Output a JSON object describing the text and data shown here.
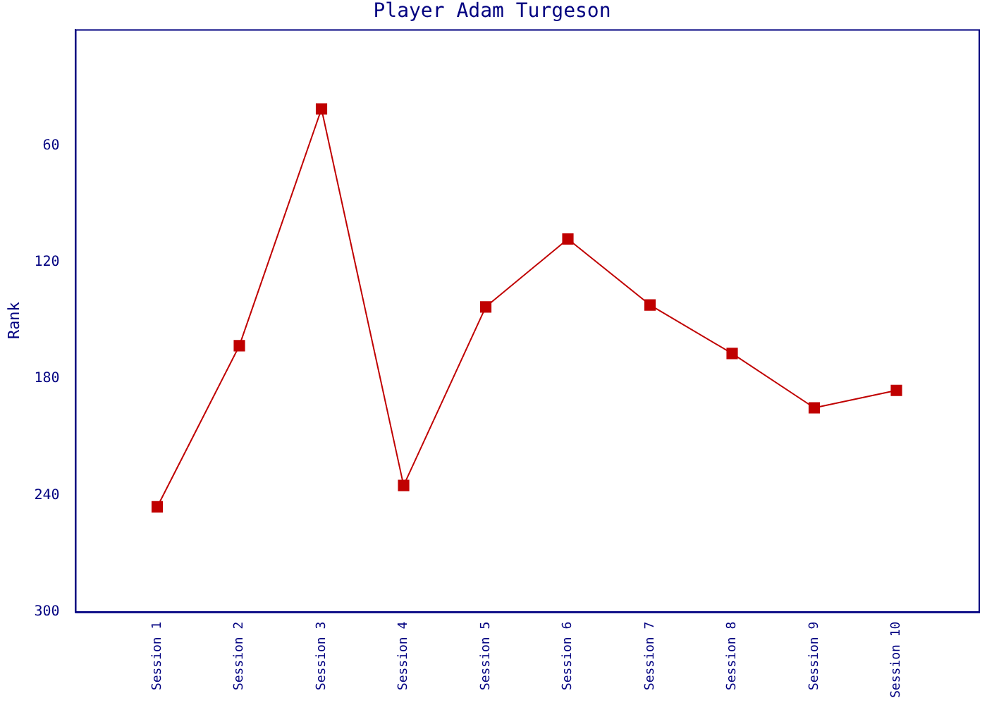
{
  "chart_data": {
    "type": "line",
    "title": "Player Adam Turgeson",
    "ylabel": "Rank",
    "categories": [
      "Session 1",
      "Session 2",
      "Session 3",
      "Session 4",
      "Session 5",
      "Session 6",
      "Session 7",
      "Session 8",
      "Session 9",
      "Session 10"
    ],
    "series": [
      {
        "color": "#c00000",
        "values": [
          246,
          163,
          41,
          235,
          143,
          108,
          142,
          167,
          195,
          186
        ]
      }
    ],
    "ylim": [
      300,
      0
    ],
    "yticks": [
      60,
      120,
      180,
      240,
      300
    ],
    "grid": false,
    "legend": false,
    "marker": "square",
    "line_style": "solid"
  }
}
